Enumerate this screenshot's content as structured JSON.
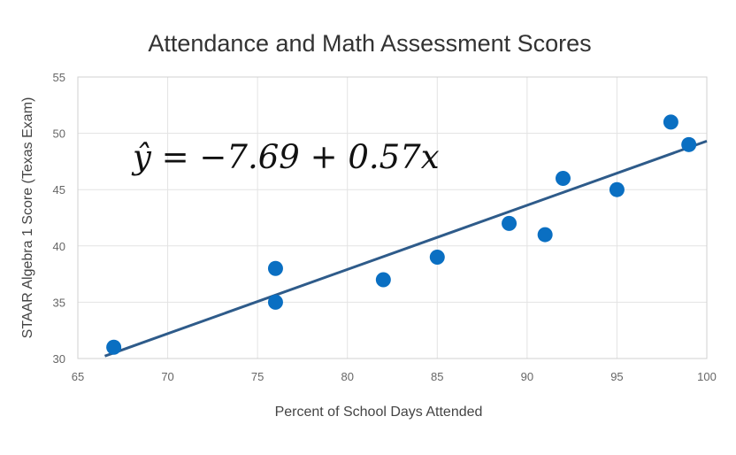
{
  "chart_data": {
    "type": "scatter",
    "title": "Attendance and Math Assessment Scores",
    "xlabel": "Percent of School Days Attended",
    "ylabel": "STAAR Algebra 1 Score (Texas Exam)",
    "xlim": [
      65,
      100
    ],
    "ylim": [
      30,
      55
    ],
    "xticks": [
      "65",
      "70",
      "75",
      "80",
      "85",
      "90",
      "95",
      "100"
    ],
    "yticks": [
      "30",
      "35",
      "40",
      "45",
      "50",
      "55"
    ],
    "grid": true,
    "equation": "ŷ = −7.69 + 0.57x",
    "trendline": {
      "intercept": -7.69,
      "slope": 0.57
    },
    "points": [
      {
        "x": 67,
        "y": 31
      },
      {
        "x": 76,
        "y": 38
      },
      {
        "x": 76,
        "y": 35
      },
      {
        "x": 82,
        "y": 37
      },
      {
        "x": 85,
        "y": 39
      },
      {
        "x": 89,
        "y": 42
      },
      {
        "x": 91,
        "y": 41
      },
      {
        "x": 92,
        "y": 46
      },
      {
        "x": 95,
        "y": 45
      },
      {
        "x": 98,
        "y": 51
      },
      {
        "x": 99,
        "y": 49
      }
    ],
    "colors": {
      "points": "#0a6fc2",
      "trendline": "#2e5b8a"
    }
  }
}
